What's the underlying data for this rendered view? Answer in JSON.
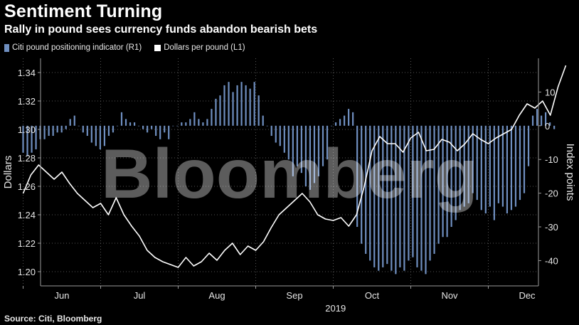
{
  "title": "Sentiment Turning",
  "subtitle": "Rally in pound sees currency funds abandon bearish bets",
  "legend": {
    "bar_label": "Citi pound positioning indicator (R1)",
    "line_label": "Dollars per pound (L1)"
  },
  "source": "Source: Citi, Bloomberg",
  "watermark": "Bloomberg",
  "colors": {
    "background": "#000000",
    "bar": "#6f8fc0",
    "line": "#ffffff",
    "grid": "#555555"
  },
  "chart_data": {
    "type": "bar",
    "combo": "bar + line (dual axis)",
    "x_axis": {
      "ticks": [
        "Jun",
        "Jul",
        "Aug",
        "Sep",
        "Oct",
        "Nov",
        "Dec"
      ],
      "year_label": "2019"
    },
    "y_left": {
      "label": "Dollars",
      "ylim": [
        1.19,
        1.35
      ],
      "ticks": [
        1.2,
        1.22,
        1.24,
        1.26,
        1.28,
        1.3,
        1.32,
        1.34
      ]
    },
    "y_right": {
      "label": "Index points",
      "ylim": [
        -47.5,
        20
      ],
      "ticks": [
        10,
        0,
        -10,
        -20,
        -30,
        -40
      ]
    },
    "grid": "vertical and horizontal dotted",
    "series": [
      {
        "name": "Citi pound positioning indicator (R1)",
        "type": "bar",
        "axis": "right",
        "x_start_month": 5.0,
        "x_end_month": 11.85,
        "values": [
          -8,
          -9,
          -8,
          -7,
          -4,
          -4,
          -3,
          -3,
          -2,
          -2,
          -1,
          2,
          3,
          0,
          -2,
          -3,
          -5,
          -6,
          -7,
          -6,
          -3,
          -2,
          0,
          4,
          2,
          1,
          1,
          0,
          -1,
          -2,
          -1,
          -3,
          -4,
          -2,
          -4,
          0,
          0,
          1,
          1,
          2,
          4,
          2,
          1,
          2,
          5,
          8,
          9,
          12,
          13,
          10,
          12,
          13,
          12,
          11,
          13,
          9,
          3,
          0,
          -3,
          -5,
          -6,
          -8,
          -10,
          -15,
          -12,
          -14,
          -18,
          -19,
          -17,
          -15,
          -12,
          -10,
          0,
          1,
          2,
          3,
          5,
          4,
          -30,
          -35,
          -38,
          -40,
          -42,
          -43,
          -42,
          -41,
          -43,
          -44,
          -42,
          -43,
          -40,
          -39,
          -42,
          -43,
          -44,
          -40,
          -38,
          -35,
          -33,
          -33,
          -30,
          -28,
          -25,
          -24,
          -23,
          -20,
          -22,
          -25,
          -26,
          -24,
          -28,
          -23,
          -24,
          -26,
          -25,
          -24,
          -22,
          -20,
          -12,
          3,
          5,
          3,
          4,
          1,
          -1
        ],
        "approximate": true
      },
      {
        "name": "Dollars per pound (L1)",
        "type": "line",
        "axis": "left",
        "x_months": [
          5.0,
          5.1,
          5.2,
          5.3,
          5.4,
          5.5,
          5.6,
          5.7,
          5.8,
          5.9,
          6.0,
          6.1,
          6.2,
          6.3,
          6.4,
          6.5,
          6.6,
          6.7,
          6.8,
          6.9,
          7.0,
          7.1,
          7.2,
          7.3,
          7.4,
          7.5,
          7.6,
          7.7,
          7.8,
          7.9,
          8.0,
          8.1,
          8.2,
          8.3,
          8.4,
          8.5,
          8.6,
          8.7,
          8.8,
          8.9,
          9.0,
          9.1,
          9.2,
          9.3,
          9.4,
          9.5,
          9.6,
          9.7,
          9.8,
          9.9,
          10.0,
          10.1,
          10.2,
          10.3,
          10.4,
          10.5,
          10.6,
          10.7,
          10.8,
          10.9,
          11.0,
          11.1,
          11.2,
          11.3,
          11.4,
          11.5,
          11.6,
          11.7,
          11.8,
          11.9,
          12.0
        ],
        "y": [
          1.255,
          1.268,
          1.275,
          1.27,
          1.265,
          1.27,
          1.262,
          1.255,
          1.25,
          1.245,
          1.248,
          1.24,
          1.252,
          1.24,
          1.232,
          1.225,
          1.215,
          1.21,
          1.207,
          1.205,
          1.203,
          1.21,
          1.204,
          1.207,
          1.213,
          1.208,
          1.215,
          1.22,
          1.212,
          1.218,
          1.215,
          1.221,
          1.231,
          1.24,
          1.245,
          1.25,
          1.255,
          1.249,
          1.24,
          1.237,
          1.236,
          1.238,
          1.232,
          1.24,
          1.26,
          1.285,
          1.295,
          1.29,
          1.29,
          1.284,
          1.294,
          1.298,
          1.285,
          1.286,
          1.293,
          1.291,
          1.285,
          1.29,
          1.297,
          1.293,
          1.29,
          1.294,
          1.297,
          1.3,
          1.31,
          1.318,
          1.315,
          1.32,
          1.31,
          1.33,
          1.345
        ],
        "approximate": true
      }
    ]
  }
}
